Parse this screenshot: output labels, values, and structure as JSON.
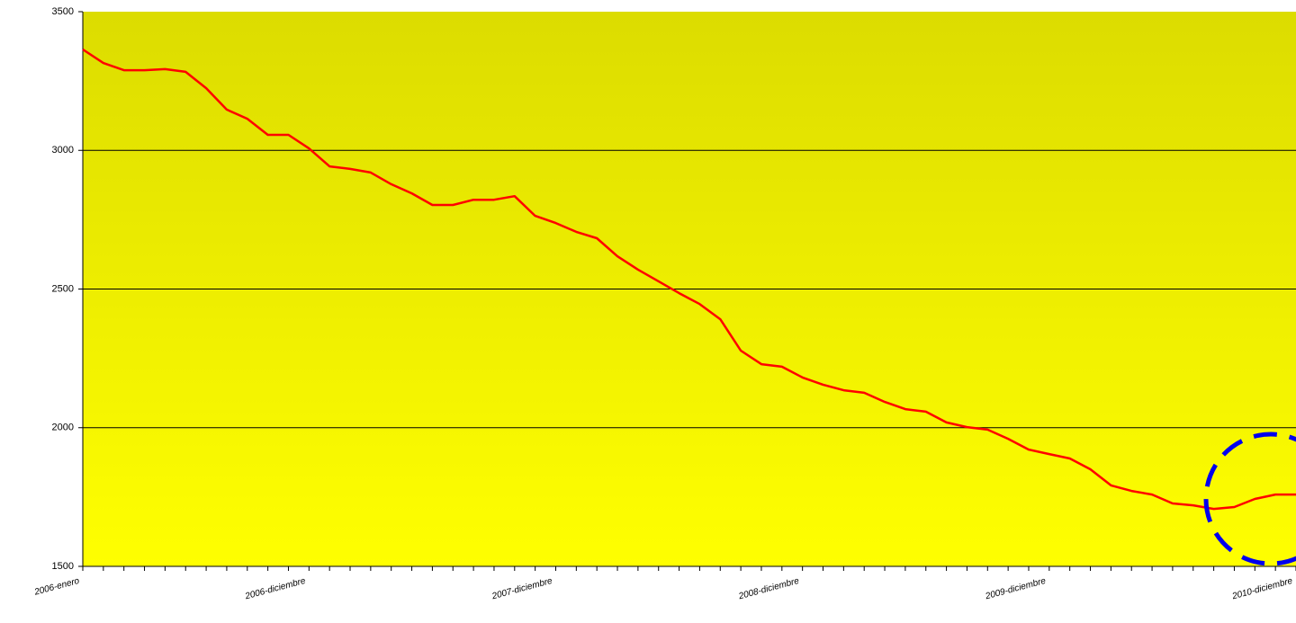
{
  "chart_data": {
    "type": "line",
    "categories": [
      "2006-enero",
      null,
      null,
      null,
      null,
      null,
      null,
      null,
      null,
      null,
      null,
      "2006-diciembre",
      null,
      null,
      null,
      null,
      null,
      null,
      null,
      null,
      null,
      null,
      null,
      "2007-diciembre",
      null,
      null,
      null,
      null,
      null,
      null,
      null,
      null,
      null,
      null,
      null,
      "2008-diciembre",
      null,
      null,
      null,
      null,
      null,
      null,
      null,
      null,
      null,
      null,
      null,
      "2009-diciembre",
      null,
      null,
      null,
      null,
      null,
      null,
      null,
      null,
      null,
      null,
      null,
      "2010-diciembre"
    ],
    "series": [
      {
        "name": null,
        "color": "#ff0000",
        "values": [
          3364,
          3315,
          3289,
          3289,
          3293,
          3283,
          3224,
          3147,
          3114,
          3056,
          3056,
          3007,
          2942,
          2933,
          2920,
          2878,
          2845,
          2803,
          2803,
          2822,
          2822,
          2835,
          2764,
          2738,
          2706,
          2683,
          2618,
          2570,
          2528,
          2485,
          2446,
          2391,
          2278,
          2229,
          2220,
          2181,
          2155,
          2135,
          2126,
          2093,
          2067,
          2058,
          2019,
          2002,
          1993,
          1960,
          1921,
          1905,
          1889,
          1850,
          1792,
          1772,
          1759,
          1727,
          1720,
          1707,
          1714,
          1743,
          1759,
          1759
        ]
      }
    ],
    "ylim": [
      1500,
      3500
    ],
    "yticks": [
      1500,
      2000,
      2500,
      3000,
      3500
    ],
    "grid": true
  }
}
